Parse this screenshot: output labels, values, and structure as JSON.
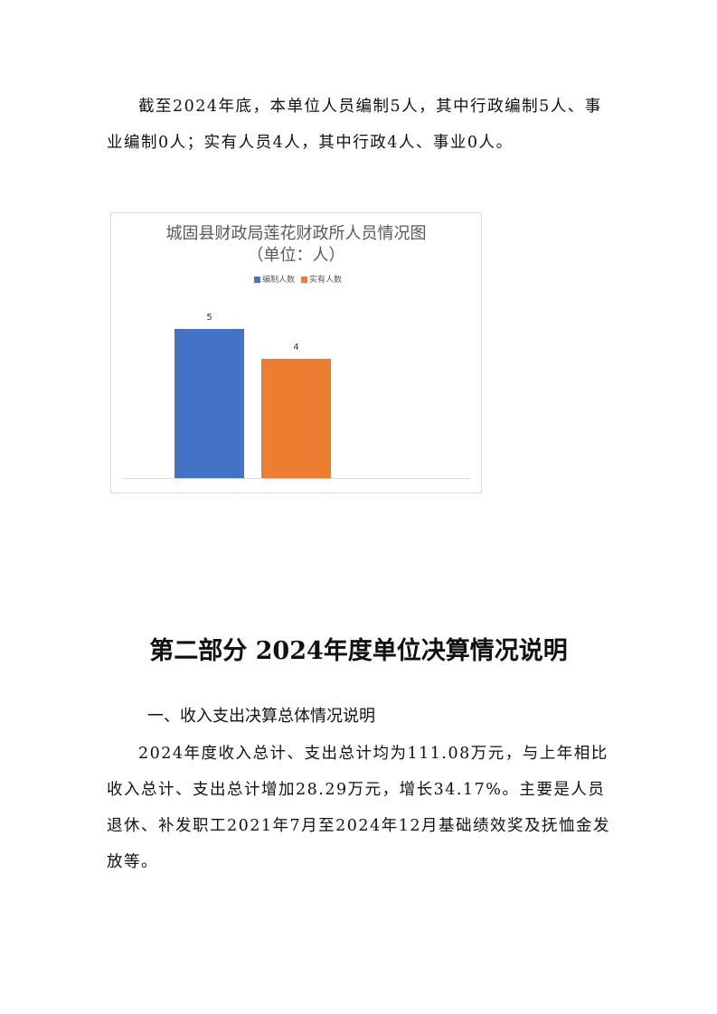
{
  "intro_paragraph": "截至2024年底，本单位人员编制5人，其中行政编制5人、事业编制0人；实有人员4人，其中行政4人、事业0人。",
  "chart_data": {
    "type": "bar",
    "title": "城固县财政局莲花财政所人员情况图",
    "subtitle": "（单位：人）",
    "series": [
      {
        "name": "编制人数",
        "values": [
          5
        ],
        "color": "#4472C4"
      },
      {
        "name": "实有人数",
        "values": [
          4
        ],
        "color": "#ED7D31"
      }
    ],
    "legend": "top",
    "grid": false
  },
  "section_title": "第二部分  2024年度单位决算情况说明",
  "subsection_title": "一、收入支出决算总体情况说明",
  "body_paragraph": "2024年度收入总计、支出总计均为111.08万元，与上年相比收入总计、支出总计增加28.29万元，增长34.17%。主要是人员退休、补发职工2021年7月至2024年12月基础绩效奖及抚恤金发放等。"
}
